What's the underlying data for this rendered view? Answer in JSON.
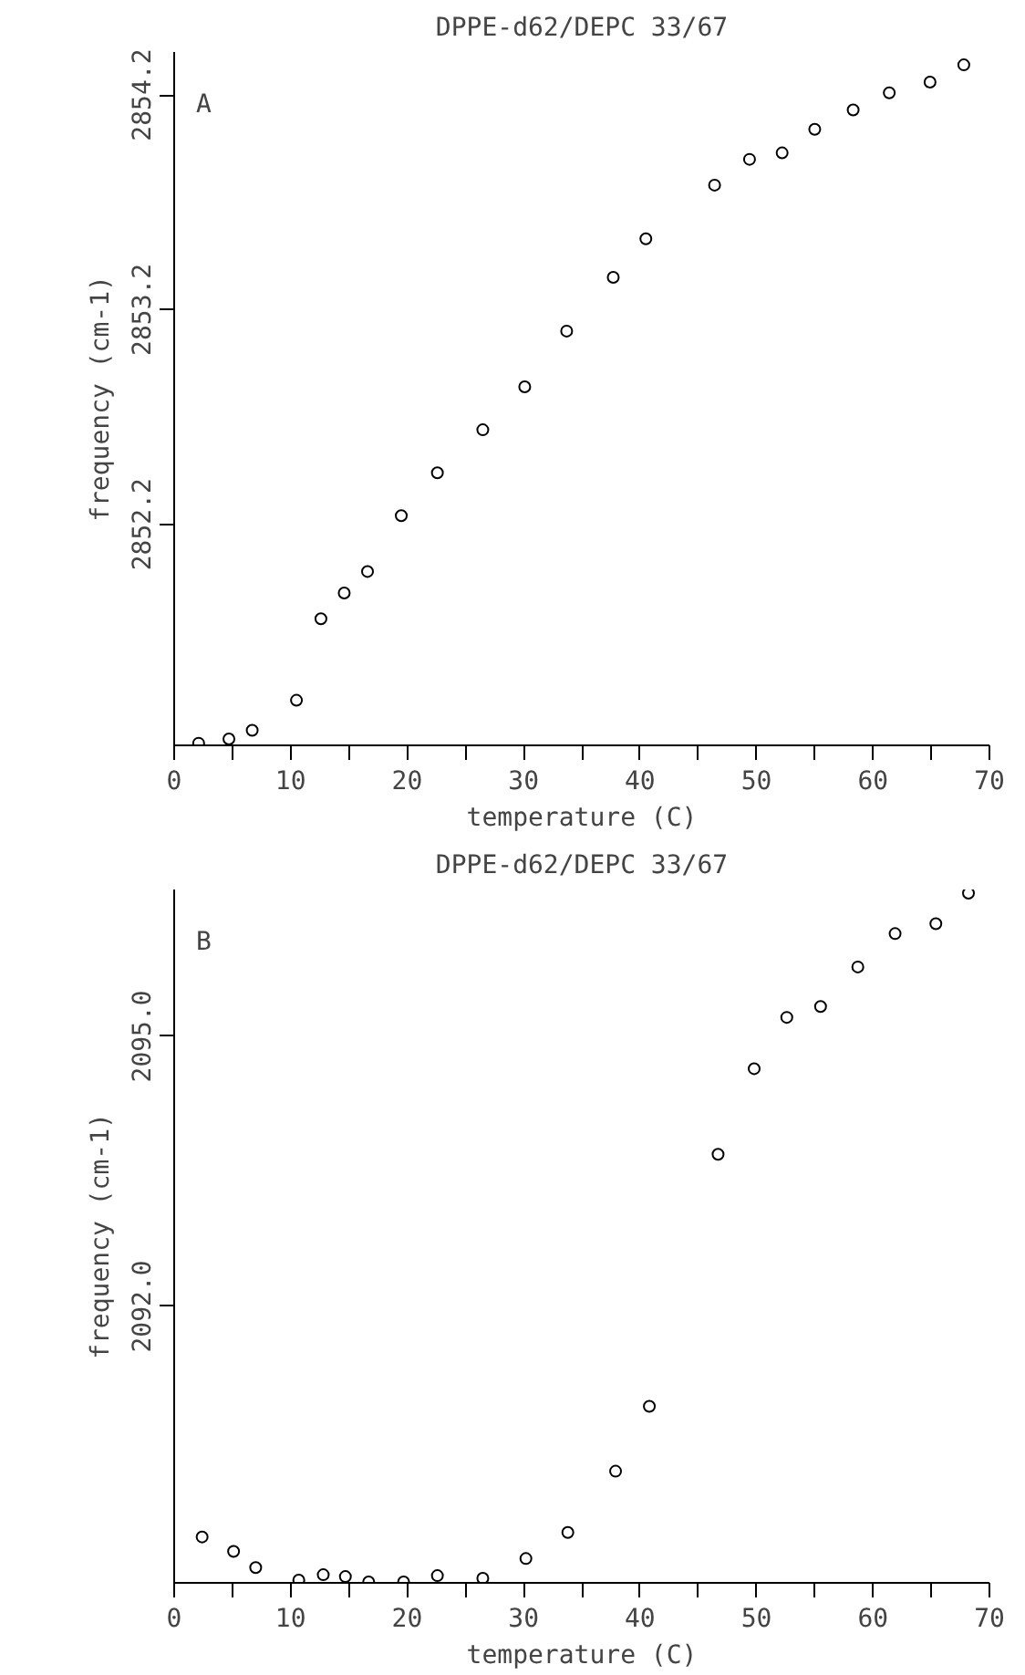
{
  "chart_data": [
    {
      "type": "scatter",
      "title": "DPPE-d62/DEPC 33/67",
      "xlabel": "temperature (C)",
      "ylabel": "frequency (cm-1)",
      "annotations": [
        "A"
      ],
      "marker": "circle",
      "grid": false,
      "x": [
        2.1,
        4.7,
        6.7,
        10.5,
        12.6,
        14.6,
        16.6,
        19.5,
        22.6,
        26.5,
        30.1,
        33.7,
        37.7,
        40.5,
        46.4,
        49.4,
        52.2,
        55.0,
        58.3,
        61.4,
        64.9,
        67.8
      ],
      "series": [
        {
          "color": "#000000",
          "values": [
            2851.18,
            2851.2,
            2851.24,
            2851.38,
            2851.76,
            2851.88,
            2851.98,
            2852.24,
            2852.44,
            2852.64,
            2852.84,
            2853.1,
            2853.35,
            2853.53,
            2853.78,
            2853.9,
            2853.93,
            2854.04,
            2854.13,
            2854.21,
            2854.26,
            2854.34
          ]
        }
      ],
      "xlim": [
        0,
        70
      ],
      "ylim": [
        2851.17,
        2854.4
      ],
      "xticks": [
        0,
        {
          "value": 5,
          "label": null
        },
        10,
        {
          "value": 15,
          "label": null
        },
        20,
        {
          "value": 25,
          "label": null
        },
        30,
        {
          "value": 35,
          "label": null
        },
        40,
        {
          "value": 45,
          "label": null
        },
        50,
        {
          "value": 55,
          "label": null
        },
        60,
        {
          "value": 65,
          "label": null
        },
        70
      ],
      "yticks": [
        2852.2,
        2853.2,
        2854.2
      ]
    },
    {
      "type": "scatter",
      "title": "DPPE-d62/DEPC 33/67",
      "xlabel": "temperature (C)",
      "ylabel": "frequency (cm-1)",
      "annotations": [
        "B"
      ],
      "marker": "circle",
      "grid": false,
      "x": [
        2.4,
        5.1,
        7.0,
        10.7,
        12.8,
        14.7,
        16.7,
        19.7,
        22.6,
        26.5,
        30.2,
        33.8,
        37.9,
        40.8,
        46.7,
        49.8,
        52.6,
        55.5,
        58.7,
        61.9,
        65.4,
        68.2
      ],
      "series": [
        {
          "color": "#000000",
          "values": [
            2089.44,
            2089.28,
            2089.1,
            2088.96,
            2089.02,
            2089.0,
            2088.94,
            2088.94,
            2089.01,
            2088.98,
            2089.2,
            2089.49,
            2090.17,
            2090.89,
            2093.69,
            2094.64,
            2095.21,
            2095.33,
            2095.77,
            2096.14,
            2096.25,
            2096.59
          ]
        }
      ],
      "xlim": [
        0,
        70
      ],
      "ylim": [
        2088.93,
        2096.63
      ],
      "xticks": [
        0,
        {
          "value": 5,
          "label": null
        },
        10,
        {
          "value": 15,
          "label": null
        },
        20,
        {
          "value": 25,
          "label": null
        },
        30,
        {
          "value": 35,
          "label": null
        },
        40,
        {
          "value": 45,
          "label": null
        },
        50,
        {
          "value": 55,
          "label": null
        },
        60,
        {
          "value": 65,
          "label": null
        },
        70
      ],
      "yticks": [
        {
          "value": 2092.0,
          "label": "2092.0"
        },
        {
          "value": 2095.0,
          "label": "2095.0"
        }
      ]
    }
  ]
}
